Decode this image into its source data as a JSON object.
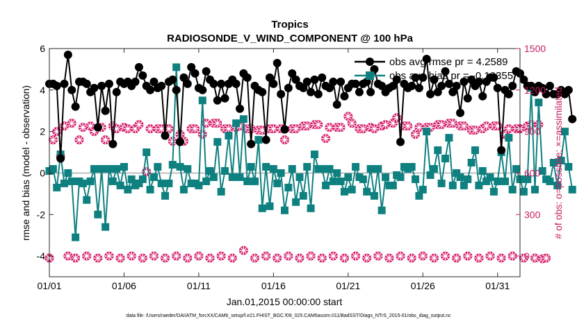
{
  "chart_data": {
    "type": "line",
    "title": "Tropics",
    "subtitle": "RADIOSONDE_V_WIND_COMPONENT @ 100 hPa",
    "xlabel": "Jan.01,2015 00:00:00 start",
    "ylabel": "rmse and bias (model - observation)",
    "ylabel_right": "# of obs: o=possible; ×=assimilated",
    "xlim": [
      1,
      32.5
    ],
    "ylim": [
      -5,
      6
    ],
    "ylim_right": [
      -150,
      1500
    ],
    "x_ticks": [
      1,
      6,
      11,
      16,
      21,
      26,
      31
    ],
    "x_tick_labels": [
      "01/01",
      "01/06",
      "01/11",
      "01/16",
      "01/21",
      "01/26",
      "01/31"
    ],
    "y_ticks": [
      -4,
      -2,
      0,
      2,
      4,
      6
    ],
    "y_tick_labels": [
      "-4",
      "-2",
      "0",
      "2",
      "4",
      "6"
    ],
    "y_ticks_right": [
      0,
      300,
      600,
      900,
      1200,
      1500
    ],
    "y_tick_labels_right": [
      "0",
      "300",
      "600",
      "900",
      "1200",
      "1500"
    ],
    "x_start": 1,
    "x_step": 0.25,
    "zero_line": 0,
    "legend": {
      "placement": "top-right",
      "entries": [
        "obs avg rmse pr = 4.2589",
        "obs avg bias pr = -0.10355"
      ]
    },
    "colors": {
      "rmse": "#000000",
      "bias": "#0f8080",
      "obs": "#d6226e",
      "zero": "#bfbfbf"
    },
    "series": [
      {
        "name": "rmse",
        "axis": "left",
        "values": [
          4.3,
          4.3,
          4.2,
          0.7,
          4.3,
          5.7,
          4.0,
          3.2,
          4.4,
          4.4,
          4.3,
          3.9,
          4.1,
          2.2,
          4.2,
          3.0,
          4.3,
          1.4,
          3.9,
          4.4,
          4.3,
          4.4,
          4.2,
          4.4,
          5.1,
          4.7,
          4.2,
          4.0,
          4.4,
          4.1,
          4.2,
          1.8,
          4.4,
          4.5,
          4.0,
          1.5,
          4.6,
          4.3,
          5.1,
          4.8,
          4.1,
          4.0,
          4.9,
          4.5,
          4.3,
          3.5,
          4.3,
          3.6,
          4.3,
          4.5,
          4.3,
          3.1,
          4.8,
          4.6,
          1.4,
          4.2,
          4.0,
          3.9,
          1.6,
          4.6,
          4.3,
          5.3,
          3.8,
          2.1,
          4.1,
          4.8,
          4.5,
          4.2,
          4.1,
          4.4,
          3.9,
          4.5,
          3.8,
          4.6,
          4.2,
          4.1,
          4.4,
          3.3,
          4.4,
          3.7,
          4.1,
          4.3,
          4.3,
          3.9,
          4.3,
          4.4,
          3.9,
          5.0,
          4.3,
          4.2,
          3.9,
          4.1,
          4.2,
          4.5,
          1.5,
          4.3,
          4.1,
          4.2,
          4.6,
          4.1,
          4.6,
          5.5,
          3.8,
          4.5,
          3.9,
          4.2,
          4.9,
          4.3,
          3.9,
          4.2,
          2.9,
          4.4,
          3.6,
          4.5,
          4.2,
          4.4,
          3.7,
          4.4,
          4.6,
          4.6,
          4.1,
          1.1,
          4.0,
          3.8,
          4.2,
          4.9,
          4.8,
          4.5,
          4.2,
          4.2,
          3.9,
          4.2,
          4.1,
          3.8,
          4.2,
          3.8,
          3.8,
          4.0,
          3.8,
          4.0,
          2.6
        ]
      },
      {
        "name": "bias",
        "axis": "left",
        "values": [
          0.1,
          0.2,
          -0.7,
          0.9,
          -0.5,
          0.0,
          -0.4,
          -3.1,
          -0.4,
          -0.5,
          -1.3,
          -0.4,
          0.2,
          -2.0,
          0.2,
          -2.6,
          0.2,
          -0.4,
          0.2,
          -0.6,
          0.3,
          -0.8,
          -0.3,
          -0.6,
          -0.5,
          -0.3,
          1.0,
          -0.8,
          -0.2,
          0.3,
          -0.5,
          -1.1,
          -0.5,
          0.4,
          5.1,
          0.3,
          -0.8,
          0.2,
          -0.5,
          -0.5,
          -0.6,
          3.5,
          -0.4,
          0.1,
          -0.2,
          1.5,
          -0.9,
          0.1,
          1.8,
          -0.2,
          2.4,
          -0.2,
          2.6,
          -0.4,
          0.3,
          -0.4,
          1.6,
          -1.7,
          0.3,
          -1.6,
          0.2,
          -0.5,
          0.0,
          -1.8,
          -0.7,
          0.2,
          -1.4,
          -0.2,
          -1.1,
          0.3,
          -1.7,
          0.9,
          0.2,
          0.2,
          -0.6,
          0.2,
          -0.4,
          0.0,
          -0.4,
          -0.9,
          -0.2,
          -0.8,
          0.3,
          -0.2,
          -0.3,
          -0.9,
          0.2,
          -1.1,
          0.2,
          -1.8,
          -0.2,
          -0.6,
          -0.6,
          -0.1,
          -0.2,
          0.3,
          0.2,
          0.3,
          -0.3,
          -1.1,
          -0.8,
          2.0,
          -0.1,
          0.2,
          1.1,
          -0.5,
          0.7,
          1.7,
          -0.6,
          0.0,
          -0.2,
          -0.6,
          -0.3,
          0.5,
          1.1,
          -0.6,
          0.1,
          -0.4,
          -0.2,
          -0.9,
          -0.4,
          1.0,
          -0.4,
          1.7,
          -0.8,
          0.2,
          -0.3,
          -0.9,
          -0.3,
          4.1,
          -0.8,
          3.4,
          0.1,
          -0.3,
          -0.4,
          0.5,
          -0.6,
          0.6,
          2.0,
          0.3,
          -0.8
        ]
      },
      {
        "name": "obs possible",
        "axis": "right",
        "values": [
          -15,
          840,
          900,
          720,
          940,
          0,
          960,
          -15,
          840,
          930,
          0,
          940,
          900,
          -15,
          930,
          840,
          0,
          940,
          920,
          -15,
          930,
          920,
          0,
          920,
          950,
          -15,
          610,
          920,
          0,
          920,
          920,
          -15,
          920,
          830,
          0,
          880,
          830,
          -15,
          920,
          920,
          0,
          880,
          960,
          -15,
          960,
          960,
          0,
          920,
          920,
          -15,
          930,
          940,
          40,
          920,
          920,
          -15,
          910,
          910,
          0,
          920,
          920,
          -15,
          920,
          840,
          0,
          920,
          920,
          -15,
          940,
          940,
          0,
          950,
          950,
          -15,
          850,
          930,
          0,
          930,
          930,
          -15,
          1010,
          960,
          0,
          920,
          920,
          -15,
          930,
          920,
          0,
          940,
          950,
          -15,
          960,
          1000,
          0,
          940,
          940,
          -15,
          880,
          930,
          0,
          930,
          930,
          -15,
          950,
          950,
          0,
          960,
          960,
          -15,
          940,
          940,
          0,
          910,
          910,
          -15,
          920,
          940,
          0,
          940,
          940,
          -15,
          880,
          920,
          0,
          920,
          920,
          -15,
          940,
          950,
          -15,
          950,
          -20,
          -15
        ]
      }
    ]
  },
  "footnote": "data file: /Users/raeder/DAI/ATM_forcXX/CAM6_setup/f.e21.FHIST_BGC.f09_025.CAM6assim.011/BadSST/Diags_NTrS_2015-01/obs_diag_output.nc"
}
